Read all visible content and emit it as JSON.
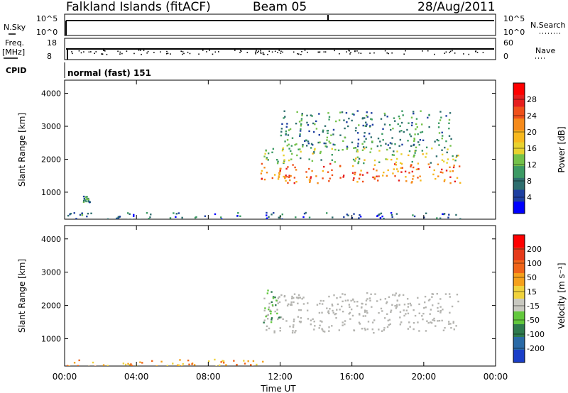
{
  "header": {
    "station": "Falkland Islands (fitACF)",
    "beam": "Beam 05",
    "date": "28/Aug/2011"
  },
  "panels": {
    "nsky": {
      "label": "N.Sky",
      "ticks": [
        "10^5",
        "10^0"
      ]
    },
    "nsearch": {
      "label": "N.Search",
      "ticks": [
        "10^5",
        "10^0"
      ]
    },
    "freq": {
      "label_line1": "Freq.",
      "label_line2": "[MHz]",
      "ticks": [
        "18",
        "8"
      ]
    },
    "nave": {
      "label": "Nave",
      "ticks": [
        "60",
        "0"
      ]
    },
    "cpid": {
      "label": "CPID",
      "value": "normal (fast) 151"
    }
  },
  "colors": {
    "power_scale": [
      "#0000ff",
      "#1e3fa0",
      "#2e6e6e",
      "#3c9a64",
      "#74c24a",
      "#e8d22e",
      "#f7b81e",
      "#f58a1a",
      "#f0501a",
      "#e61e1e",
      "#ff0000"
    ],
    "velocity_scale": [
      "#1a3ec8",
      "#2a6aa6",
      "#2e7a4e",
      "#62c83c",
      "#c8c8c0",
      "#f0d23c",
      "#f5a01a",
      "#f06418",
      "#e63a1a",
      "#ff0000"
    ],
    "ground_scatter": "#b4b4b0"
  },
  "chart_data": [
    {
      "type": "heatmap",
      "name": "power",
      "ylabel": "Slant Range [km]",
      "yticks": [
        "4000",
        "3000",
        "2000",
        "1000"
      ],
      "ylim": [
        180,
        4400
      ],
      "xlim": [
        0,
        24
      ],
      "xticks": [
        "00:00",
        "04:00",
        "08:00",
        "12:00",
        "16:00",
        "20:00",
        "00:00"
      ],
      "xlabel": "",
      "colorbar": {
        "label": "Power [dB]",
        "ticks": [
          "28",
          "24",
          "20",
          "16",
          "12",
          "8",
          "4"
        ],
        "range": [
          0,
          30
        ]
      },
      "regions": [
        {
          "t": [
            10.9,
            22.0
          ],
          "r": [
            1300,
            1900
          ],
          "level": 22
        },
        {
          "t": [
            11.0,
            22.0
          ],
          "r": [
            1900,
            2400
          ],
          "level": 12
        },
        {
          "t": [
            12.0,
            21.5
          ],
          "r": [
            2400,
            3500
          ],
          "level": 8
        },
        {
          "t": [
            0.0,
            22.0
          ],
          "r": [
            180,
            400
          ],
          "level": 6
        },
        {
          "t": [
            1.0,
            1.4
          ],
          "r": [
            700,
            900
          ],
          "level": 8
        }
      ]
    },
    {
      "type": "heatmap",
      "name": "velocity",
      "ylabel": "Slant Range [km]",
      "yticks": [
        "4000",
        "3000",
        "2000",
        "1000"
      ],
      "ylim": [
        180,
        4400
      ],
      "xlim": [
        0,
        24
      ],
      "xticks": [
        "00:00",
        "04:00",
        "08:00",
        "12:00",
        "16:00",
        "20:00",
        "00:00"
      ],
      "xlabel": "Time UT",
      "colorbar": {
        "label": "Velocity [m s⁻¹]",
        "ticks": [
          "200",
          "100",
          "50",
          "15",
          "-15",
          "-50",
          "-100",
          "-200"
        ],
        "range": [
          -250,
          250
        ]
      },
      "regions": [
        {
          "t": [
            11.0,
            22.0
          ],
          "r": [
            1200,
            2400
          ],
          "class": "ground"
        },
        {
          "t": [
            11.0,
            12.0
          ],
          "r": [
            1500,
            2500
          ],
          "class": "positive"
        },
        {
          "t": [
            0.0,
            11.0
          ],
          "r": [
            180,
            400
          ],
          "class": "negative"
        }
      ]
    }
  ]
}
